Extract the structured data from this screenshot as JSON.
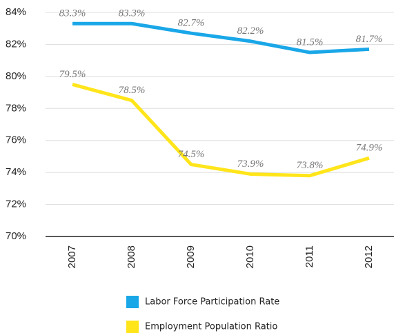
{
  "chart_data": {
    "type": "line",
    "categories": [
      "2007",
      "2008",
      "2009",
      "2010",
      "2011",
      "2012"
    ],
    "series": [
      {
        "name": "Labor Force Participation Rate",
        "color": "#1aa7e8",
        "values": [
          83.3,
          83.3,
          82.7,
          82.2,
          81.5,
          81.7
        ],
        "value_labels": [
          "83.3%",
          "83.3%",
          "82.7%",
          "82.2%",
          "81.5%",
          "81.7%"
        ]
      },
      {
        "name": "Employment Population Ratio",
        "color": "#ffe51a",
        "values": [
          79.5,
          78.5,
          74.5,
          73.9,
          73.8,
          74.9
        ],
        "value_labels": [
          "79.5%",
          "78.5%",
          "74.5%",
          "73.9%",
          "73.8%",
          "74.9%"
        ]
      }
    ],
    "ylim": [
      70,
      84
    ],
    "yticks": [
      {
        "value": 70,
        "label": "70%"
      },
      {
        "value": 72,
        "label": "72%"
      },
      {
        "value": 74,
        "label": "74%"
      },
      {
        "value": 76,
        "label": "76%"
      },
      {
        "value": 78,
        "label": "78%"
      },
      {
        "value": 80,
        "label": "80%"
      },
      {
        "value": 82,
        "label": "82%"
      },
      {
        "value": 84,
        "label": "84%"
      }
    ],
    "grid": true
  }
}
